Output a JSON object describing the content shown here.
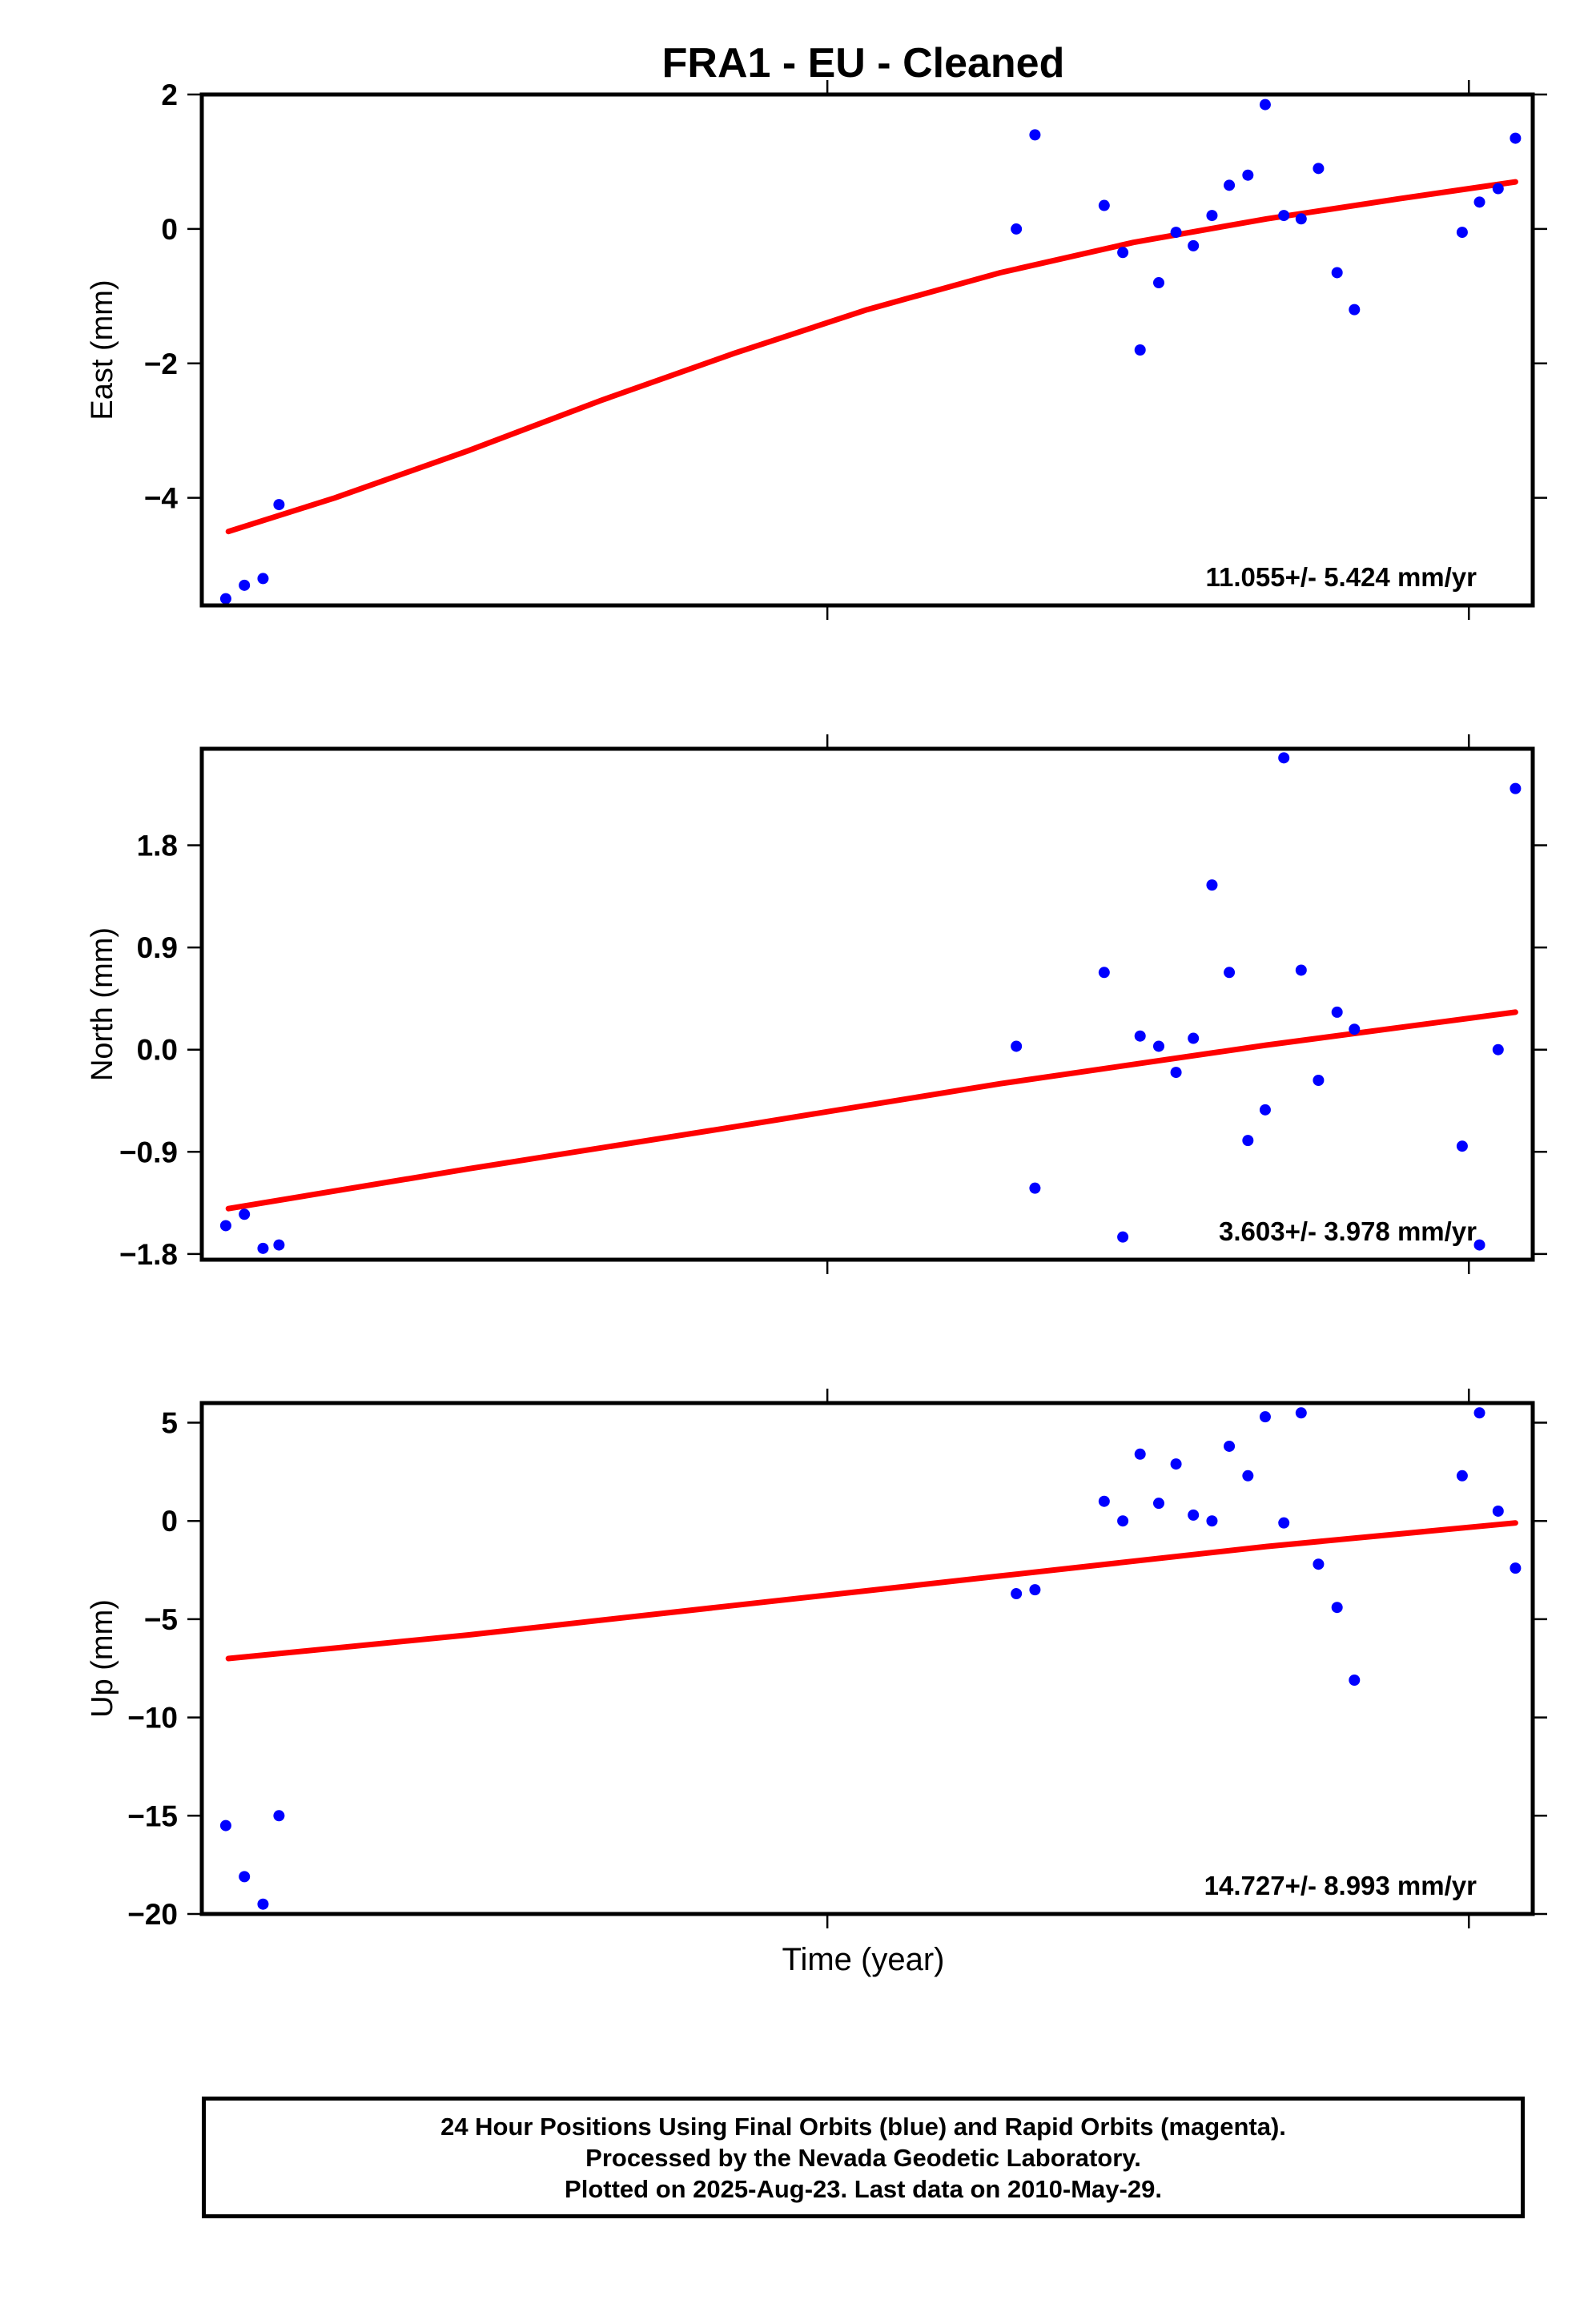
{
  "title": "FRA1  - EU - Cleaned",
  "xlabel": "Time (year)",
  "footer": {
    "line1": "24 Hour Positions Using Final Orbits (blue) and Rapid Orbits (magenta).",
    "line2": "Processed by the Nevada Geodetic Laboratory.",
    "line3": "Plotted on 2025-Aug-23. Last data on 2010-May-29."
  },
  "colors": {
    "points": "#0000ff",
    "fit": "#ff0000",
    "axes": "#000000"
  },
  "chart_data": [
    {
      "type": "scatter",
      "name": "east",
      "ylabel": "East (mm)",
      "rate_label": "11.055+/- 5.424 mm/yr",
      "xlim": [
        0,
        1
      ],
      "ylim": [
        -5.6,
        2.0
      ],
      "yticks": [
        2,
        0,
        -2,
        -4
      ],
      "ytick_labels": [
        "2",
        "0",
        "−2",
        "−4"
      ],
      "points": [
        [
          0.018,
          -5.5
        ],
        [
          0.032,
          -5.3
        ],
        [
          0.046,
          -5.2
        ],
        [
          0.058,
          -4.1
        ],
        [
          0.612,
          0.0
        ],
        [
          0.626,
          1.4
        ],
        [
          0.678,
          0.35
        ],
        [
          0.692,
          -0.35
        ],
        [
          0.705,
          -1.8
        ],
        [
          0.719,
          -0.8
        ],
        [
          0.732,
          -0.05
        ],
        [
          0.745,
          -0.25
        ],
        [
          0.759,
          0.2
        ],
        [
          0.772,
          0.65
        ],
        [
          0.786,
          0.8
        ],
        [
          0.799,
          1.85
        ],
        [
          0.813,
          0.2
        ],
        [
          0.826,
          0.15
        ],
        [
          0.839,
          0.9
        ],
        [
          0.853,
          -0.65
        ],
        [
          0.866,
          -1.2
        ],
        [
          0.947,
          -0.05
        ],
        [
          0.96,
          0.4
        ],
        [
          0.974,
          0.6
        ],
        [
          0.987,
          1.35
        ]
      ],
      "fit": [
        [
          0.02,
          -4.5
        ],
        [
          0.1,
          -4.0
        ],
        [
          0.2,
          -3.3
        ],
        [
          0.3,
          -2.55
        ],
        [
          0.4,
          -1.85
        ],
        [
          0.5,
          -1.2
        ],
        [
          0.6,
          -0.65
        ],
        [
          0.7,
          -0.2
        ],
        [
          0.8,
          0.15
        ],
        [
          0.9,
          0.45
        ],
        [
          0.987,
          0.7
        ]
      ]
    },
    {
      "type": "scatter",
      "name": "north",
      "ylabel": "North (mm)",
      "rate_label": "3.603+/- 3.978 mm/yr",
      "xlim": [
        0,
        1
      ],
      "ylim": [
        -1.85,
        2.65
      ],
      "yticks": [
        1.8,
        0.9,
        0.0,
        -0.9,
        -1.8
      ],
      "ytick_labels": [
        "1.8",
        "0.9",
        "0.0",
        "−0.9",
        "−1.8"
      ],
      "points": [
        [
          0.018,
          -1.55
        ],
        [
          0.032,
          -1.45
        ],
        [
          0.046,
          -1.75
        ],
        [
          0.058,
          -1.72
        ],
        [
          0.612,
          0.03
        ],
        [
          0.626,
          -1.22
        ],
        [
          0.678,
          0.68
        ],
        [
          0.692,
          -1.65
        ],
        [
          0.705,
          0.12
        ],
        [
          0.719,
          0.03
        ],
        [
          0.732,
          -0.2
        ],
        [
          0.745,
          0.1
        ],
        [
          0.759,
          1.45
        ],
        [
          0.772,
          0.68
        ],
        [
          0.786,
          -0.8
        ],
        [
          0.799,
          -0.53
        ],
        [
          0.813,
          2.57
        ],
        [
          0.826,
          0.7
        ],
        [
          0.839,
          -0.27
        ],
        [
          0.853,
          0.33
        ],
        [
          0.866,
          0.18
        ],
        [
          0.947,
          -0.85
        ],
        [
          0.96,
          -1.72
        ],
        [
          0.974,
          0.0
        ],
        [
          0.987,
          2.3
        ]
      ],
      "fit": [
        [
          0.02,
          -1.4
        ],
        [
          0.2,
          -1.05
        ],
        [
          0.4,
          -0.68
        ],
        [
          0.6,
          -0.3
        ],
        [
          0.8,
          0.04
        ],
        [
          0.987,
          0.33
        ]
      ]
    },
    {
      "type": "scatter",
      "name": "up",
      "ylabel": "Up (mm)",
      "rate_label": "14.727+/- 8.993 mm/yr",
      "xlim": [
        0,
        1
      ],
      "ylim": [
        -20.0,
        6.0
      ],
      "yticks": [
        5,
        0,
        -5,
        -10,
        -15,
        -20
      ],
      "ytick_labels": [
        "5",
        "0",
        "−5",
        "−10",
        "−15",
        "−20"
      ],
      "points": [
        [
          0.018,
          -15.5
        ],
        [
          0.032,
          -18.1
        ],
        [
          0.046,
          -19.5
        ],
        [
          0.058,
          -15.0
        ],
        [
          0.612,
          -3.7
        ],
        [
          0.626,
          -3.5
        ],
        [
          0.678,
          1.0
        ],
        [
          0.692,
          0.0
        ],
        [
          0.705,
          3.4
        ],
        [
          0.719,
          0.9
        ],
        [
          0.732,
          2.9
        ],
        [
          0.745,
          0.3
        ],
        [
          0.759,
          0.0
        ],
        [
          0.772,
          3.8
        ],
        [
          0.786,
          2.3
        ],
        [
          0.799,
          5.3
        ],
        [
          0.813,
          -0.1
        ],
        [
          0.826,
          5.5
        ],
        [
          0.839,
          -2.2
        ],
        [
          0.853,
          -4.4
        ],
        [
          0.866,
          -8.1
        ],
        [
          0.947,
          2.3
        ],
        [
          0.96,
          5.5
        ],
        [
          0.974,
          0.5
        ],
        [
          0.987,
          -2.4
        ]
      ],
      "fit": [
        [
          0.02,
          -7.0
        ],
        [
          0.2,
          -5.8
        ],
        [
          0.4,
          -4.3
        ],
        [
          0.6,
          -2.8
        ],
        [
          0.8,
          -1.3
        ],
        [
          0.987,
          -0.1
        ]
      ]
    }
  ]
}
